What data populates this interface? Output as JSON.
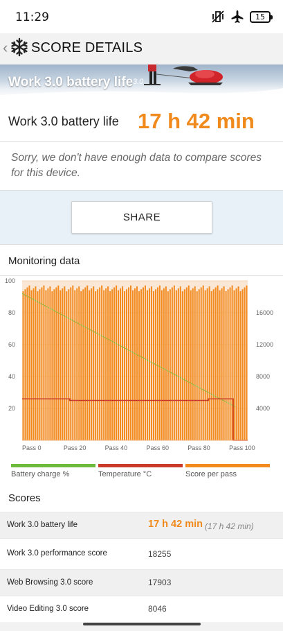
{
  "status": {
    "time": "11:29",
    "battery": "15"
  },
  "appbar": {
    "title": "SCORE DETAILS"
  },
  "banner": {
    "title": "Work 3.0 battery life",
    "version": "3.0"
  },
  "result": {
    "name": "Work 3.0 battery life",
    "value": "17 h 42 min"
  },
  "notice": "Sorry, we don't have enough data to compare scores for this device.",
  "share_label": "SHARE",
  "monitoring": {
    "heading": "Monitoring data",
    "legend": [
      {
        "label": "Battery charge %",
        "color": "#6dbb3c"
      },
      {
        "label": "Temperature °C",
        "color": "#c93a2a"
      },
      {
        "label": "Score per pass",
        "color": "#f28a1e"
      }
    ]
  },
  "chart_data": {
    "type": "bar",
    "left_axis": {
      "ticks": [
        20,
        40,
        60,
        80,
        100
      ],
      "range": [
        0,
        100
      ]
    },
    "right_axis": {
      "ticks": [
        4000,
        8000,
        12000,
        16000
      ],
      "range": [
        0,
        20000
      ]
    },
    "x_ticks": [
      "Pass 0",
      "Pass 20",
      "Pass 40",
      "Pass 60",
      "Pass 80",
      "Pass 100"
    ],
    "series": [
      {
        "name": "Score per pass",
        "axis": "right",
        "approx_value": 19000,
        "passes": 109
      },
      {
        "name": "Battery charge %",
        "axis": "left",
        "start": 92,
        "end": 21
      },
      {
        "name": "Temperature °C",
        "axis": "left",
        "segments": [
          {
            "from_pass": 0,
            "to_pass": 23,
            "value": 26
          },
          {
            "from_pass": 23,
            "to_pass": 90,
            "value": 25
          },
          {
            "from_pass": 90,
            "to_pass": 102,
            "value": 26
          },
          {
            "from_pass": 102,
            "to_pass": 109,
            "value": 0
          }
        ]
      }
    ]
  },
  "scores": {
    "heading": "Scores",
    "rows": [
      {
        "label": "Work 3.0 battery life",
        "value": "17 h 42 min",
        "sub": "(17 h 42 min)"
      },
      {
        "label": "Work 3.0 performance score",
        "value": "18255"
      },
      {
        "label": "Web Browsing 3.0 score",
        "value": "17903"
      },
      {
        "label": "Video Editing 3.0 score",
        "value": "8046"
      }
    ]
  }
}
